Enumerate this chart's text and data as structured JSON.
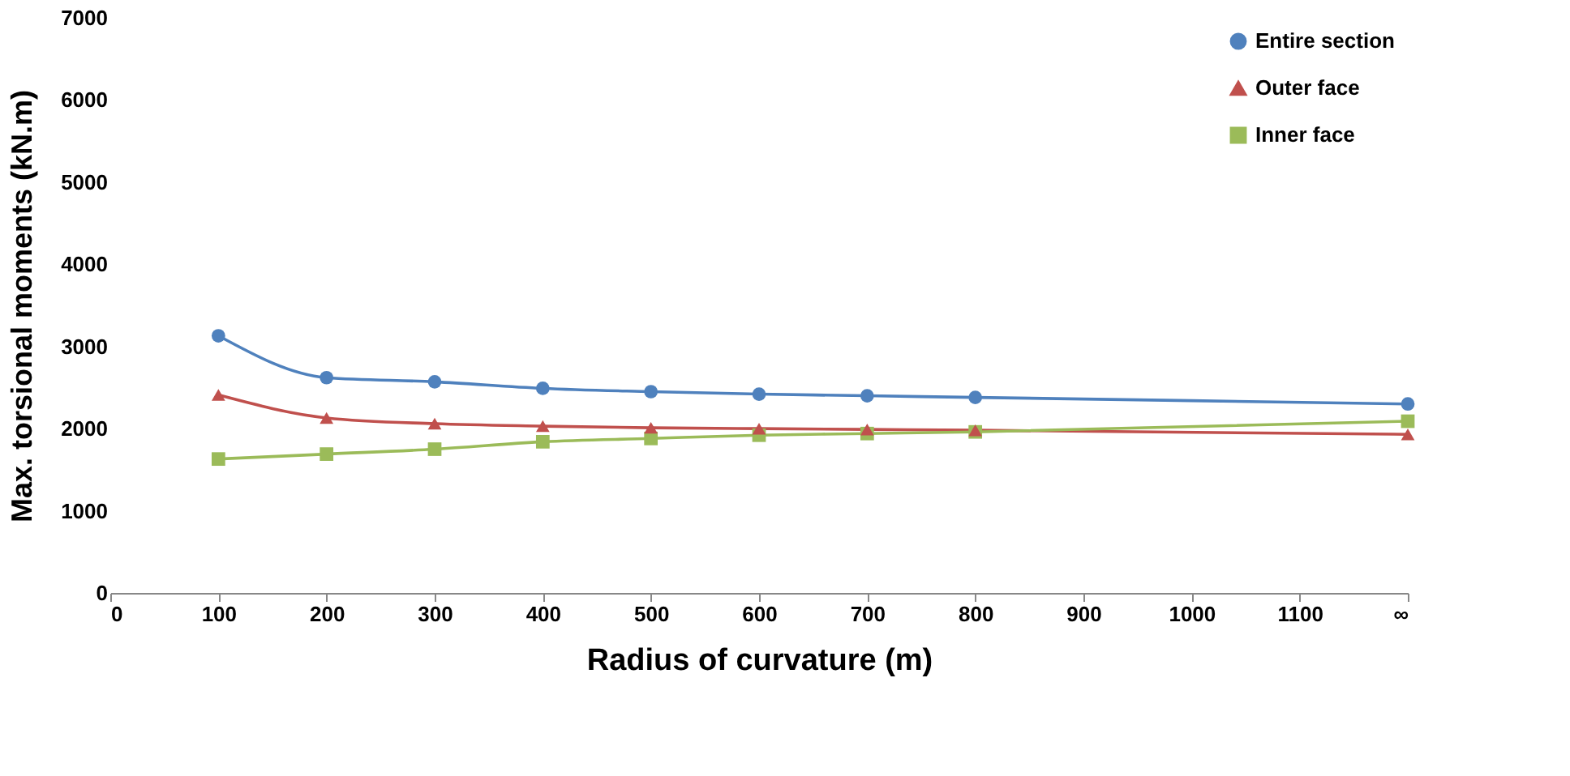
{
  "chart_data": {
    "type": "line",
    "xlabel": "Radius of curvature (m)",
    "ylabel": "Max. torsional moments (kN.m)",
    "x": [
      100,
      200,
      300,
      400,
      500,
      600,
      700,
      800,
      1200
    ],
    "xlim": [
      0,
      1200
    ],
    "xticks": [
      0,
      100,
      200,
      300,
      400,
      500,
      600,
      700,
      800,
      900,
      1000,
      1100,
      {
        "value": 1200,
        "label": "∞"
      }
    ],
    "ylim": [
      0,
      7000
    ],
    "yticks": [
      0,
      1000,
      2000,
      3000,
      4000,
      5000,
      6000,
      7000
    ],
    "grid": false,
    "legend": "top right",
    "line_style": "solid",
    "series": [
      {
        "name": "Entire section",
        "color": "#4f81bd",
        "marker": "circle",
        "values": [
          3130,
          2620,
          2570,
          2490,
          2450,
          2420,
          2400,
          2380,
          2300
        ]
      },
      {
        "name": "Outer face",
        "color": "#c0504d",
        "marker": "triangle",
        "values": [
          2410,
          2130,
          2060,
          2030,
          2010,
          2000,
          1990,
          1980,
          1930
        ]
      },
      {
        "name": "Inner face",
        "color": "#9bbb59",
        "marker": "square",
        "values": [
          1630,
          1690,
          1750,
          1840,
          1880,
          1920,
          1940,
          1960,
          2090
        ]
      }
    ]
  }
}
